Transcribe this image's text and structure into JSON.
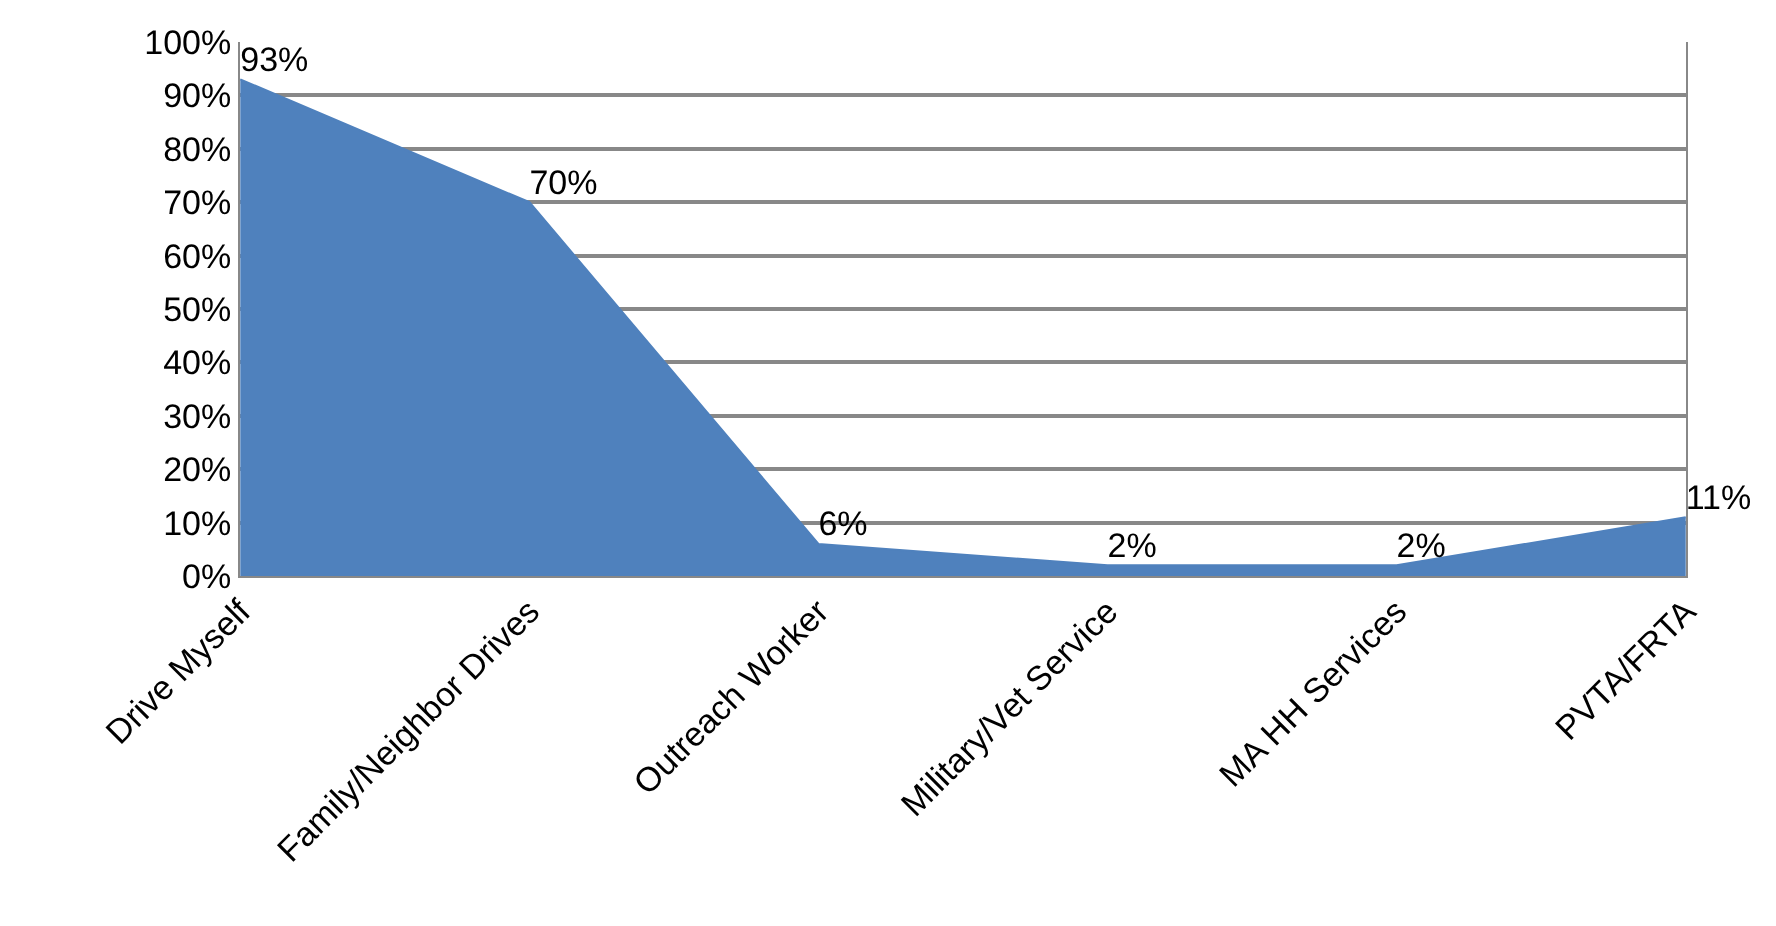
{
  "chart_data": {
    "type": "area",
    "categories": [
      "Drive Myself",
      "Family/Neighbor Drives",
      "Outreach Worker",
      "Military/Vet Service",
      "MA HH Services",
      "PVTA/FRTA"
    ],
    "values": [
      93,
      70,
      6,
      2,
      2,
      11
    ],
    "value_labels": [
      "93%",
      "70%",
      "6%",
      "2%",
      "2%",
      "11%"
    ],
    "color": "#4f81bd",
    "ylim": [
      0,
      100
    ],
    "yticks": [
      {
        "value": 0,
        "label": "0%"
      },
      {
        "value": 10,
        "label": "10%"
      },
      {
        "value": 20,
        "label": "20%"
      },
      {
        "value": 30,
        "label": "30%"
      },
      {
        "value": 40,
        "label": "40%"
      },
      {
        "value": 50,
        "label": "50%"
      },
      {
        "value": 60,
        "label": "60%"
      },
      {
        "value": 70,
        "label": "70%"
      },
      {
        "value": 80,
        "label": "80%"
      },
      {
        "value": 90,
        "label": "90%"
      },
      {
        "value": 100,
        "label": "100%"
      }
    ],
    "grid": "y"
  }
}
